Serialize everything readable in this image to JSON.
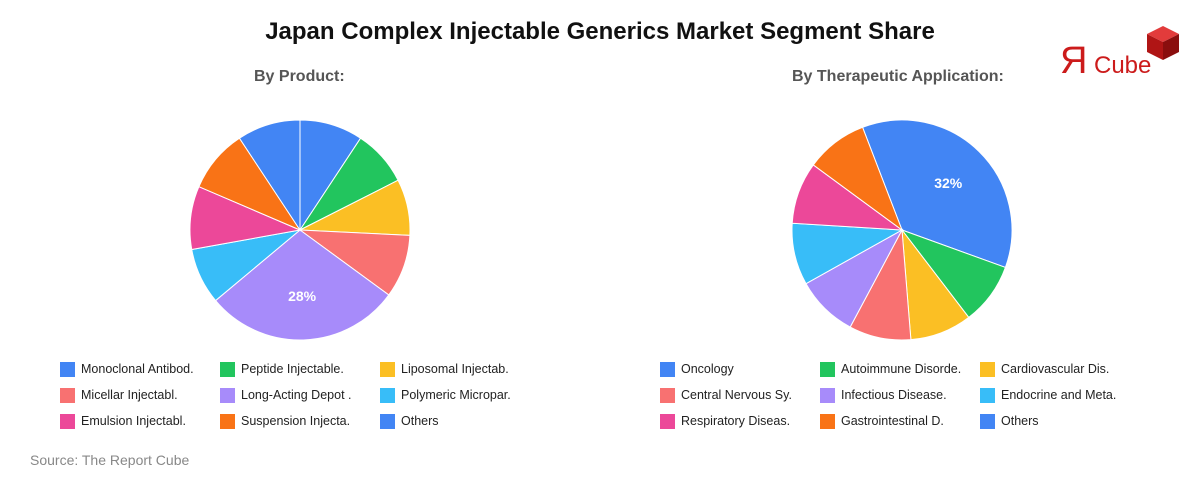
{
  "title": "Japan Complex Injectable Generics Market Segment Share",
  "source": "Source: The Report Cube",
  "logo": {
    "text_r": "Я",
    "text_cube": "Cube",
    "color": "#cc1b1b"
  },
  "chart_data": [
    {
      "type": "pie",
      "title": "By Product:",
      "start_angle_deg": 0,
      "direction": "clockwise",
      "categories": [
        "Monoclonal Antibod.",
        "Peptide Injectable.",
        "Liposomal Injectab.",
        "Micellar Injectabl.",
        "Long-Acting Depot .",
        "Polymeric Micropar.",
        "Emulsion Injectabl.",
        "Suspension Injecta.",
        "Others"
      ],
      "values": [
        9,
        8,
        8,
        9,
        28,
        8,
        9,
        9,
        9
      ],
      "slice_order": [
        0,
        1,
        2,
        3,
        4,
        5,
        6,
        7,
        8
      ],
      "colors": [
        "#4285f4",
        "#22c55e",
        "#fbbf24",
        "#f87171",
        "#a78bfa",
        "#38bdf8",
        "#ec4899",
        "#f97316",
        "#4285f4"
      ],
      "data_labels": [
        {
          "index": 4,
          "text": "28%"
        }
      ],
      "legend_position": "bottom"
    },
    {
      "type": "pie",
      "title": "By Therapeutic Application:",
      "start_angle_deg": -21,
      "direction": "clockwise",
      "categories": [
        "Oncology",
        "Autoimmune Disorde.",
        "Cardiovascular Dis.",
        "Central Nervous Sy.",
        "Infectious Disease.",
        "Endocrine and Meta.",
        "Respiratory Diseas.",
        "Gastrointestinal D.",
        "Others"
      ],
      "values": [
        32,
        8,
        8,
        8,
        8,
        8,
        8,
        8,
        0
      ],
      "slice_order": [
        0,
        1,
        2,
        3,
        4,
        5,
        6,
        7,
        8
      ],
      "colors": [
        "#4285f4",
        "#22c55e",
        "#fbbf24",
        "#f87171",
        "#a78bfa",
        "#38bdf8",
        "#ec4899",
        "#f97316",
        "#4285f4"
      ],
      "data_labels": [
        {
          "index": 0,
          "text": "32%"
        }
      ],
      "legend_position": "bottom"
    }
  ]
}
